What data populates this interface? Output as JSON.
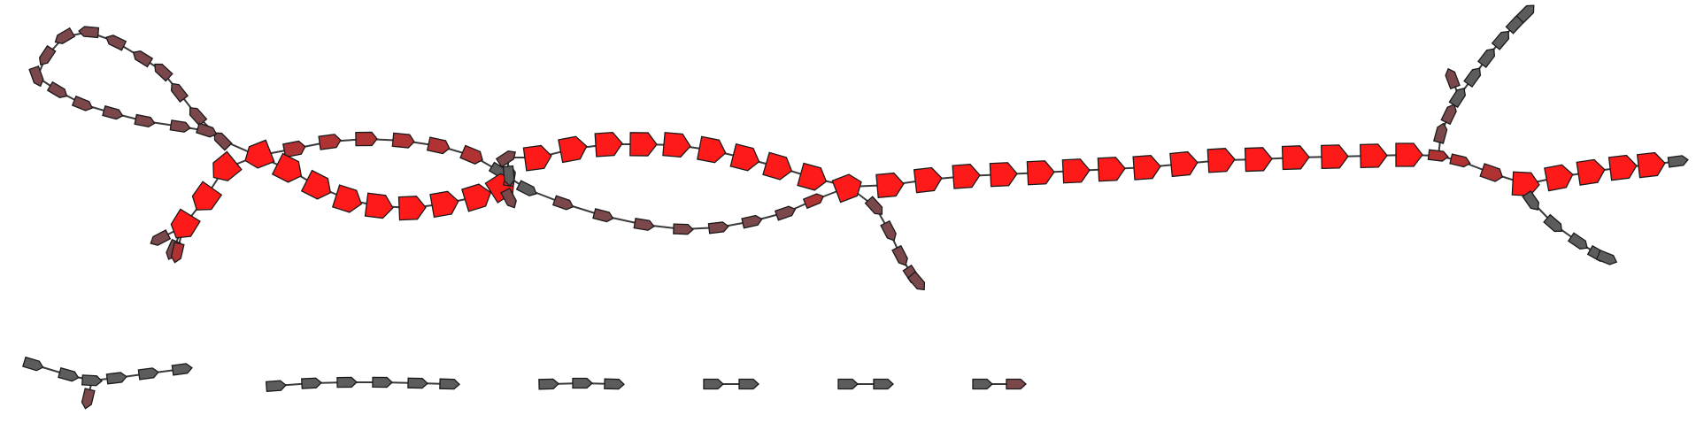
{
  "graph": {
    "colors": {
      "red": "#ff1a1a",
      "dark_red": "#b03232",
      "maroon": "#7a474b",
      "gray": "#5c5c5c"
    },
    "components": [
      {
        "id": "main-graph"
      },
      {
        "id": "fragment-y"
      },
      {
        "id": "fragment-long"
      },
      {
        "id": "fragment-3"
      },
      {
        "id": "fragment-2a"
      },
      {
        "id": "fragment-2b"
      },
      {
        "id": "fragment-2c"
      }
    ]
  }
}
